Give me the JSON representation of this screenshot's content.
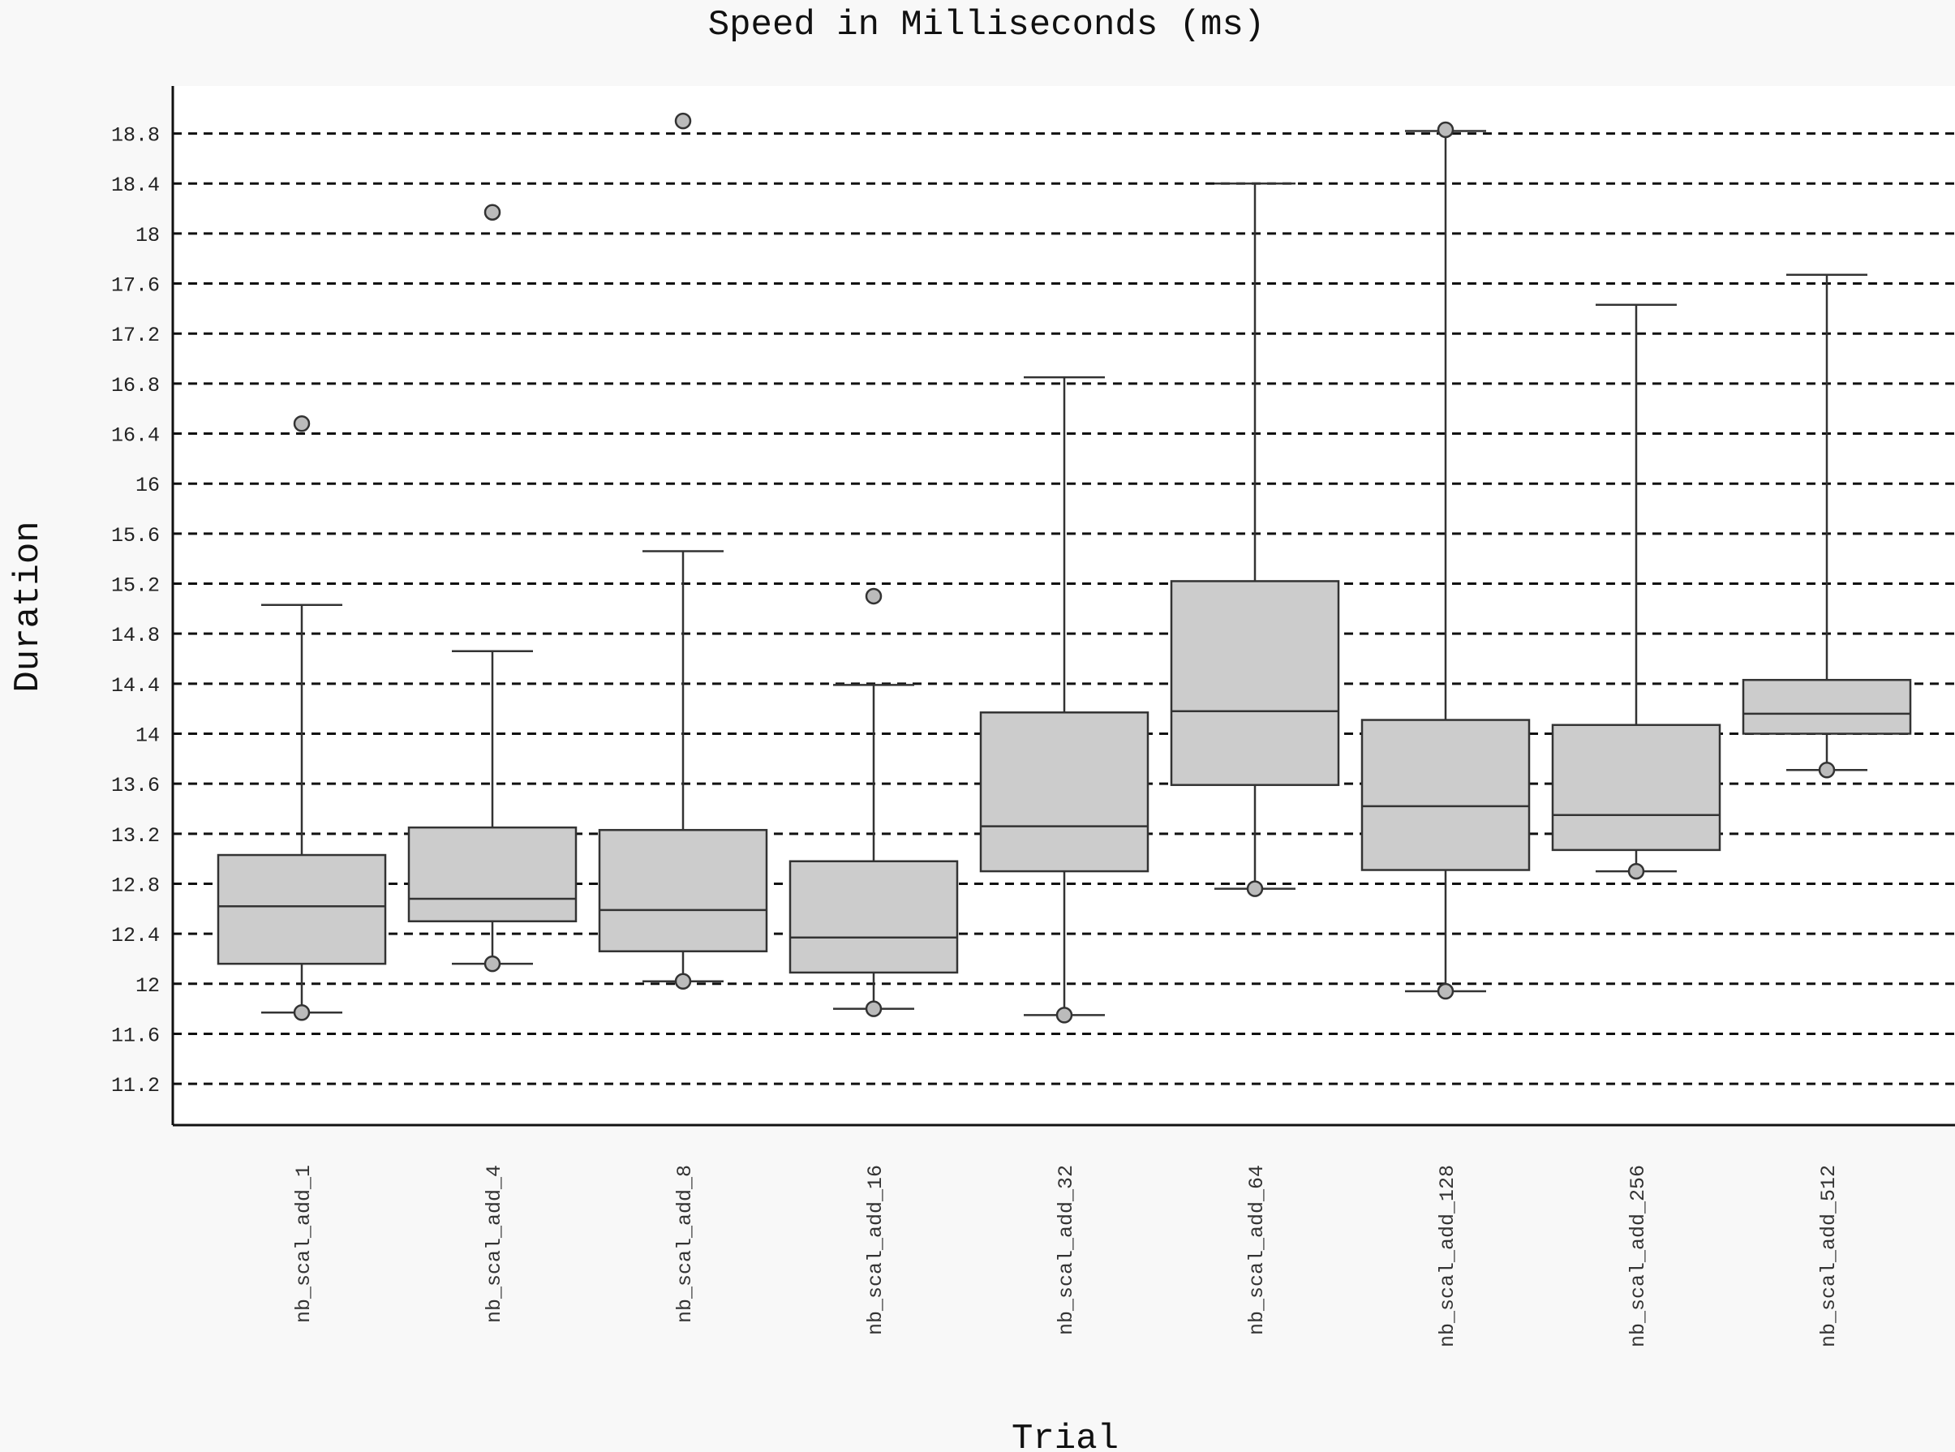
{
  "chart_data": {
    "type": "boxplot",
    "title": "Speed in Milliseconds (ms)",
    "xlabel": "Trial",
    "ylabel": "Duration",
    "ylim": [
      10.87,
      19.18
    ],
    "yticks": [
      11.2,
      11.6,
      12,
      12.4,
      12.8,
      13.2,
      13.6,
      14,
      14.4,
      14.8,
      15.2,
      15.6,
      16,
      16.4,
      16.8,
      17.2,
      17.6,
      18,
      18.4,
      18.8
    ],
    "ytick_labels": [
      "11.2",
      "11.6",
      "12",
      "12.4",
      "12.8",
      "13.2",
      "13.6",
      "14",
      "14.4",
      "14.8",
      "15.2",
      "15.6",
      "16",
      "16.4",
      "16.8",
      "17.2",
      "17.6",
      "18",
      "18.4",
      "18.8"
    ],
    "grid": "horizontal dashed",
    "colors": {
      "box_fill": "#cccccc",
      "stroke": "#333333",
      "grid": "#111111",
      "background": "#f8f8f8",
      "plot_background": "#ffffff"
    },
    "categories": [
      "nb_scal_add_1",
      "nb_scal_add_4",
      "nb_scal_add_8",
      "nb_scal_add_16",
      "nb_scal_add_32",
      "nb_scal_add_64",
      "nb_scal_add_128",
      "nb_scal_add_256",
      "nb_scal_add_512"
    ],
    "boxes": [
      {
        "whislo": 11.77,
        "q1": 12.16,
        "med": 12.62,
        "q3": 13.03,
        "whishi": 15.03,
        "fliers": [
          16.48,
          11.77
        ]
      },
      {
        "whislo": 12.16,
        "q1": 12.5,
        "med": 12.68,
        "q3": 13.25,
        "whishi": 14.66,
        "fliers": [
          18.17,
          12.16
        ]
      },
      {
        "whislo": 12.02,
        "q1": 12.26,
        "med": 12.59,
        "q3": 13.23,
        "whishi": 15.46,
        "fliers": [
          18.9,
          12.02
        ]
      },
      {
        "whislo": 11.8,
        "q1": 12.09,
        "med": 12.37,
        "q3": 12.98,
        "whishi": 14.39,
        "fliers": [
          15.1,
          11.8
        ]
      },
      {
        "whislo": 11.75,
        "q1": 12.9,
        "med": 13.26,
        "q3": 14.17,
        "whishi": 16.85,
        "fliers": [
          11.75
        ]
      },
      {
        "whislo": 12.76,
        "q1": 13.59,
        "med": 14.18,
        "q3": 15.22,
        "whishi": 18.4,
        "fliers": [
          12.76
        ]
      },
      {
        "whislo": 11.94,
        "q1": 12.91,
        "med": 13.42,
        "q3": 14.11,
        "whishi": 18.82,
        "fliers": [
          18.83,
          11.94
        ]
      },
      {
        "whislo": 12.9,
        "q1": 13.07,
        "med": 13.35,
        "q3": 14.07,
        "whishi": 17.43,
        "fliers": [
          12.9
        ]
      },
      {
        "whislo": 13.71,
        "q1": 14.0,
        "med": 14.16,
        "q3": 14.43,
        "whishi": 17.67,
        "fliers": [
          13.71
        ]
      }
    ]
  }
}
